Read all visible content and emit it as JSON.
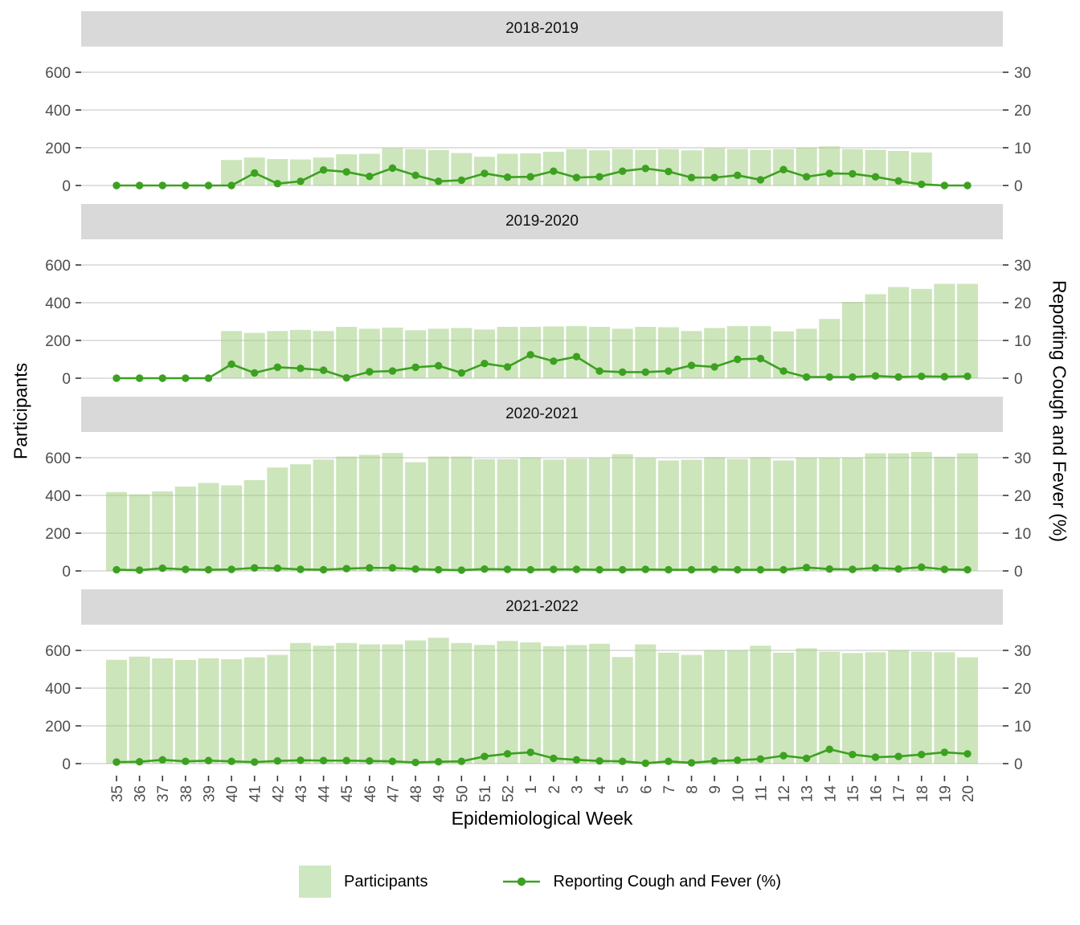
{
  "figure": {
    "x_axis_title": "Epidemiological Week",
    "y_left_axis_title": "Participants",
    "y_right_axis_title": "Reporting Cough and Fever (%)",
    "legend": {
      "position": "bottom",
      "bar_label": "Participants",
      "line_label": "Reporting Cough and Fever (%)"
    }
  },
  "chart_data": {
    "type": "bar",
    "subtype": "faceted dual-axis bar + line (points), 4 season facets sharing x and y scales",
    "xlabel": "Epidemiological Week",
    "ylabel_left": "Participants",
    "ylabel_right": "Reporting Cough and Fever (%)",
    "grid": "horizontal gridlines only",
    "legend_position": "bottom",
    "y_left_ticks": [
      0,
      200,
      400,
      600
    ],
    "y_right_ticks": [
      0,
      10,
      20,
      30
    ],
    "right_axis_scale_factor": 20,
    "ylim_left": [
      0,
      700
    ],
    "categories": [
      "35",
      "36",
      "37",
      "38",
      "39",
      "40",
      "41",
      "42",
      "43",
      "44",
      "45",
      "46",
      "47",
      "48",
      "49",
      "50",
      "51",
      "52",
      "1",
      "2",
      "3",
      "4",
      "5",
      "6",
      "7",
      "8",
      "9",
      "10",
      "11",
      "12",
      "13",
      "14",
      "15",
      "16",
      "17",
      "18",
      "19",
      "20"
    ],
    "colors": {
      "bar_fill": "#cde7c1",
      "bar_fill_rgba": "rgba(153,204,120,0.5)",
      "line": "#3ca120",
      "strip_background": "#d9d9d9",
      "gridline": "#d6d6d6",
      "tick_mark": "#333333",
      "tick_label": "#4d4d4d"
    },
    "facets": [
      {
        "title": "2018-2019",
        "participants": [
          0,
          0,
          0,
          0,
          0,
          135,
          148,
          140,
          138,
          148,
          165,
          168,
          198,
          193,
          188,
          172,
          152,
          168,
          170,
          179,
          193,
          186,
          193,
          189,
          193,
          186,
          197,
          193,
          189,
          193,
          200,
          207,
          193,
          189,
          183,
          175,
          0,
          0
        ],
        "pct_cough_fever": [
          0,
          0,
          0,
          0,
          0,
          0,
          3.3,
          0.5,
          1.1,
          4.1,
          3.6,
          2.4,
          4.6,
          2.7,
          1.1,
          1.4,
          3.2,
          2.2,
          2.3,
          3.8,
          2.1,
          2.3,
          3.8,
          4.5,
          3.7,
          2.1,
          2.1,
          2.7,
          1.5,
          4.2,
          2.3,
          3.2,
          3.1,
          2.3,
          1.2,
          0.3,
          0,
          0
        ]
      },
      {
        "title": "2019-2020",
        "participants": [
          0,
          0,
          0,
          0,
          0,
          250,
          240,
          250,
          256,
          250,
          272,
          262,
          268,
          254,
          262,
          266,
          258,
          272,
          272,
          274,
          276,
          272,
          262,
          272,
          270,
          250,
          266,
          276,
          276,
          248,
          262,
          314,
          404,
          445,
          483,
          473,
          500,
          500
        ],
        "pct_cough_fever": [
          0,
          0,
          0,
          0,
          0,
          3.7,
          1.4,
          2.9,
          2.6,
          2.1,
          0.1,
          1.7,
          1.9,
          2.9,
          3.3,
          1.4,
          3.9,
          3.0,
          6.2,
          4.5,
          5.7,
          1.9,
          1.6,
          1.6,
          1.9,
          3.4,
          3.0,
          5.0,
          5.2,
          1.9,
          0.3,
          0.3,
          0.3,
          0.6,
          0.3,
          0.5,
          0.4,
          0.5
        ]
      },
      {
        "title": "2020-2021",
        "participants": [
          418,
          406,
          421,
          447,
          466,
          453,
          481,
          548,
          565,
          590,
          606,
          615,
          625,
          576,
          606,
          606,
          592,
          592,
          601,
          590,
          595,
          598,
          619,
          598,
          585,
          589,
          602,
          593,
          602,
          585,
          600,
          600,
          600,
          623,
          623,
          630,
          605,
          623
        ],
        "pct_cough_fever": [
          0.3,
          0.2,
          0.7,
          0.4,
          0.3,
          0.4,
          0.8,
          0.7,
          0.4,
          0.3,
          0.6,
          0.8,
          0.8,
          0.5,
          0.3,
          0.2,
          0.5,
          0.4,
          0.3,
          0.4,
          0.4,
          0.3,
          0.3,
          0.4,
          0.3,
          0.3,
          0.4,
          0.3,
          0.3,
          0.3,
          0.9,
          0.5,
          0.4,
          0.8,
          0.5,
          1.0,
          0.4,
          0.3
        ]
      },
      {
        "title": "2021-2022",
        "participants": [
          550,
          567,
          558,
          549,
          558,
          553,
          563,
          576,
          639,
          625,
          639,
          632,
          632,
          653,
          667,
          639,
          629,
          650,
          642,
          622,
          628,
          635,
          565,
          632,
          588,
          576,
          601,
          601,
          625,
          588,
          611,
          593,
          586,
          590,
          601,
          593,
          590,
          563
        ],
        "pct_cough_fever": [
          0.4,
          0.5,
          1.0,
          0.6,
          0.8,
          0.6,
          0.4,
          0.7,
          0.9,
          0.8,
          0.8,
          0.7,
          0.6,
          0.3,
          0.5,
          0.6,
          1.9,
          2.6,
          3.0,
          1.4,
          1.0,
          0.7,
          0.6,
          0.1,
          0.6,
          0.2,
          0.7,
          0.9,
          1.2,
          2.1,
          1.4,
          3.8,
          2.4,
          1.7,
          1.9,
          2.4,
          3.0,
          2.6
        ]
      }
    ]
  }
}
